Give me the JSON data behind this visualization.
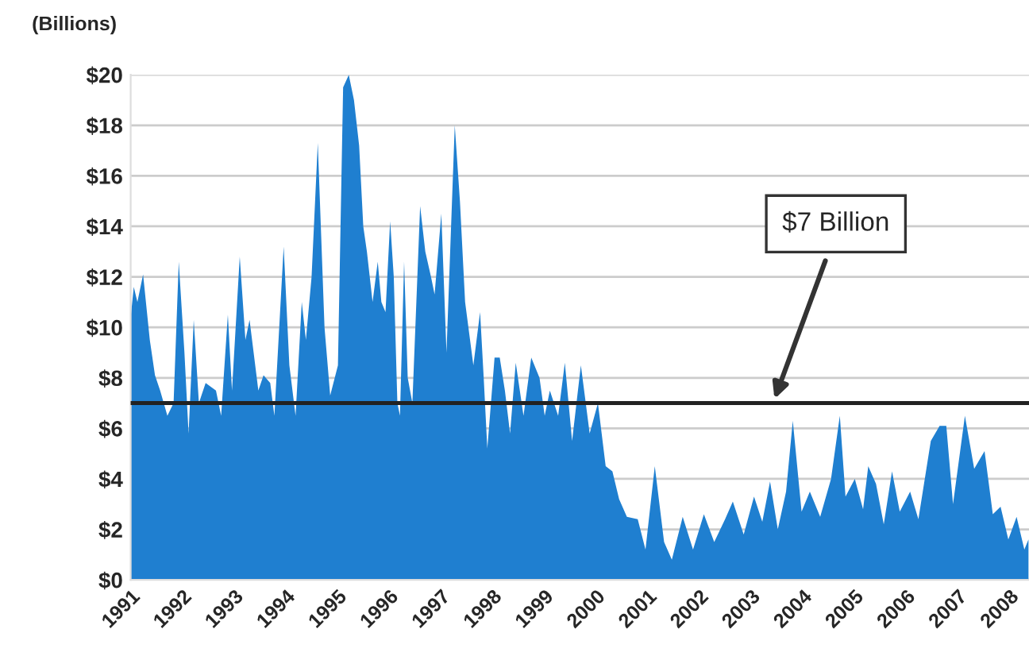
{
  "chart_data": {
    "type": "area",
    "ylabel": "(Billions)",
    "x": [
      1991.0,
      1991.06,
      1991.13,
      1991.24,
      1991.37,
      1991.47,
      1991.57,
      1991.71,
      1991.83,
      1991.93,
      1992.04,
      1992.12,
      1992.22,
      1992.32,
      1992.45,
      1992.65,
      1992.75,
      1992.88,
      1992.96,
      1993.11,
      1993.22,
      1993.3,
      1993.47,
      1993.57,
      1993.7,
      1993.78,
      1993.96,
      1994.07,
      1994.19,
      1994.31,
      1994.39,
      1994.5,
      1994.62,
      1994.75,
      1994.86,
      1995.01,
      1995.11,
      1995.22,
      1995.32,
      1995.42,
      1995.5,
      1995.57,
      1995.68,
      1995.78,
      1995.85,
      1995.93,
      1996.02,
      1996.09,
      1996.16,
      1996.21,
      1996.29,
      1996.36,
      1996.45,
      1996.6,
      1996.7,
      1996.81,
      1996.88,
      1997.01,
      1997.11,
      1997.27,
      1997.37,
      1997.47,
      1997.63,
      1997.76,
      1997.83,
      1997.9,
      1998.04,
      1998.14,
      1998.24,
      1998.34,
      1998.45,
      1998.6,
      1998.75,
      1998.91,
      1999.01,
      1999.11,
      1999.27,
      1999.4,
      1999.54,
      1999.71,
      1999.88,
      2000.04,
      2000.19,
      2000.32,
      2000.45,
      2000.6,
      2000.81,
      2000.96,
      2001.14,
      2001.32,
      2001.47,
      2001.68,
      2001.88,
      2002.09,
      2002.29,
      2002.5,
      2002.65,
      2002.86,
      2003.06,
      2003.22,
      2003.37,
      2003.52,
      2003.68,
      2003.81,
      2003.98,
      2004.14,
      2004.34,
      2004.55,
      2004.72,
      2004.83,
      2005.01,
      2005.17,
      2005.27,
      2005.42,
      2005.57,
      2005.73,
      2005.88,
      2006.08,
      2006.24,
      2006.48,
      2006.65,
      2006.78,
      2006.91,
      2007.14,
      2007.32,
      2007.52,
      2007.68,
      2007.83,
      2007.98,
      2008.14,
      2008.29,
      2008.37
    ],
    "series": [
      {
        "color": "#1f7fd0",
        "values": [
          10.4,
          11.6,
          11.0,
          12.1,
          9.5,
          8.1,
          7.5,
          6.5,
          7.0,
          12.6,
          9.0,
          5.8,
          10.3,
          7.0,
          7.8,
          7.5,
          6.5,
          10.5,
          7.5,
          12.8,
          9.5,
          10.3,
          7.5,
          8.1,
          7.8,
          6.5,
          13.2,
          8.5,
          6.5,
          11.0,
          9.5,
          12.0,
          17.3,
          10.0,
          7.3,
          8.5,
          19.5,
          20.0,
          19.0,
          17.2,
          14.0,
          13.0,
          11.0,
          12.6,
          11.0,
          10.6,
          14.2,
          12.0,
          7.0,
          6.5,
          12.6,
          8.0,
          7.0,
          14.8,
          13.0,
          12.0,
          11.3,
          14.5,
          9.0,
          18.0,
          15.0,
          11.0,
          8.5,
          10.6,
          8.0,
          5.2,
          8.8,
          8.8,
          7.5,
          5.8,
          8.6,
          6.5,
          8.8,
          8.0,
          6.5,
          7.5,
          6.5,
          8.6,
          5.5,
          8.5,
          5.8,
          7.0,
          4.5,
          4.3,
          3.2,
          2.5,
          2.4,
          1.2,
          4.5,
          1.5,
          0.8,
          2.5,
          1.2,
          2.6,
          1.5,
          2.4,
          3.1,
          1.8,
          3.3,
          2.3,
          3.9,
          2.0,
          3.5,
          6.3,
          2.7,
          3.5,
          2.5,
          4.0,
          6.5,
          3.3,
          4.0,
          2.8,
          4.5,
          3.8,
          2.2,
          4.3,
          2.7,
          3.5,
          2.4,
          5.5,
          6.1,
          6.1,
          3.0,
          6.5,
          4.4,
          5.1,
          2.6,
          2.9,
          1.6,
          2.5,
          1.2,
          1.6
        ]
      }
    ],
    "xlim": [
      1991,
      2008.38
    ],
    "xticks": [
      1991,
      1992,
      1993,
      1994,
      1995,
      1996,
      1997,
      1998,
      1999,
      2000,
      2001,
      2002,
      2003,
      2004,
      2005,
      2006,
      2007,
      2008
    ],
    "ylim": [
      0,
      20
    ],
    "yticks": [
      {
        "value": 0,
        "label": "$0"
      },
      {
        "value": 2,
        "label": "$2"
      },
      {
        "value": 4,
        "label": "$4"
      },
      {
        "value": 6,
        "label": "$6"
      },
      {
        "value": 8,
        "label": "$8"
      },
      {
        "value": 10,
        "label": "$10"
      },
      {
        "value": 12,
        "label": "$12"
      },
      {
        "value": 14,
        "label": "$14"
      },
      {
        "value": 16,
        "label": "$16"
      },
      {
        "value": 18,
        "label": "$18"
      },
      {
        "value": 20,
        "label": "$20"
      }
    ],
    "grid": "y",
    "ref_lines": [
      {
        "axis": "y",
        "value": 7,
        "color": "#222222"
      }
    ],
    "annotations": [
      "$7 Billion"
    ]
  }
}
